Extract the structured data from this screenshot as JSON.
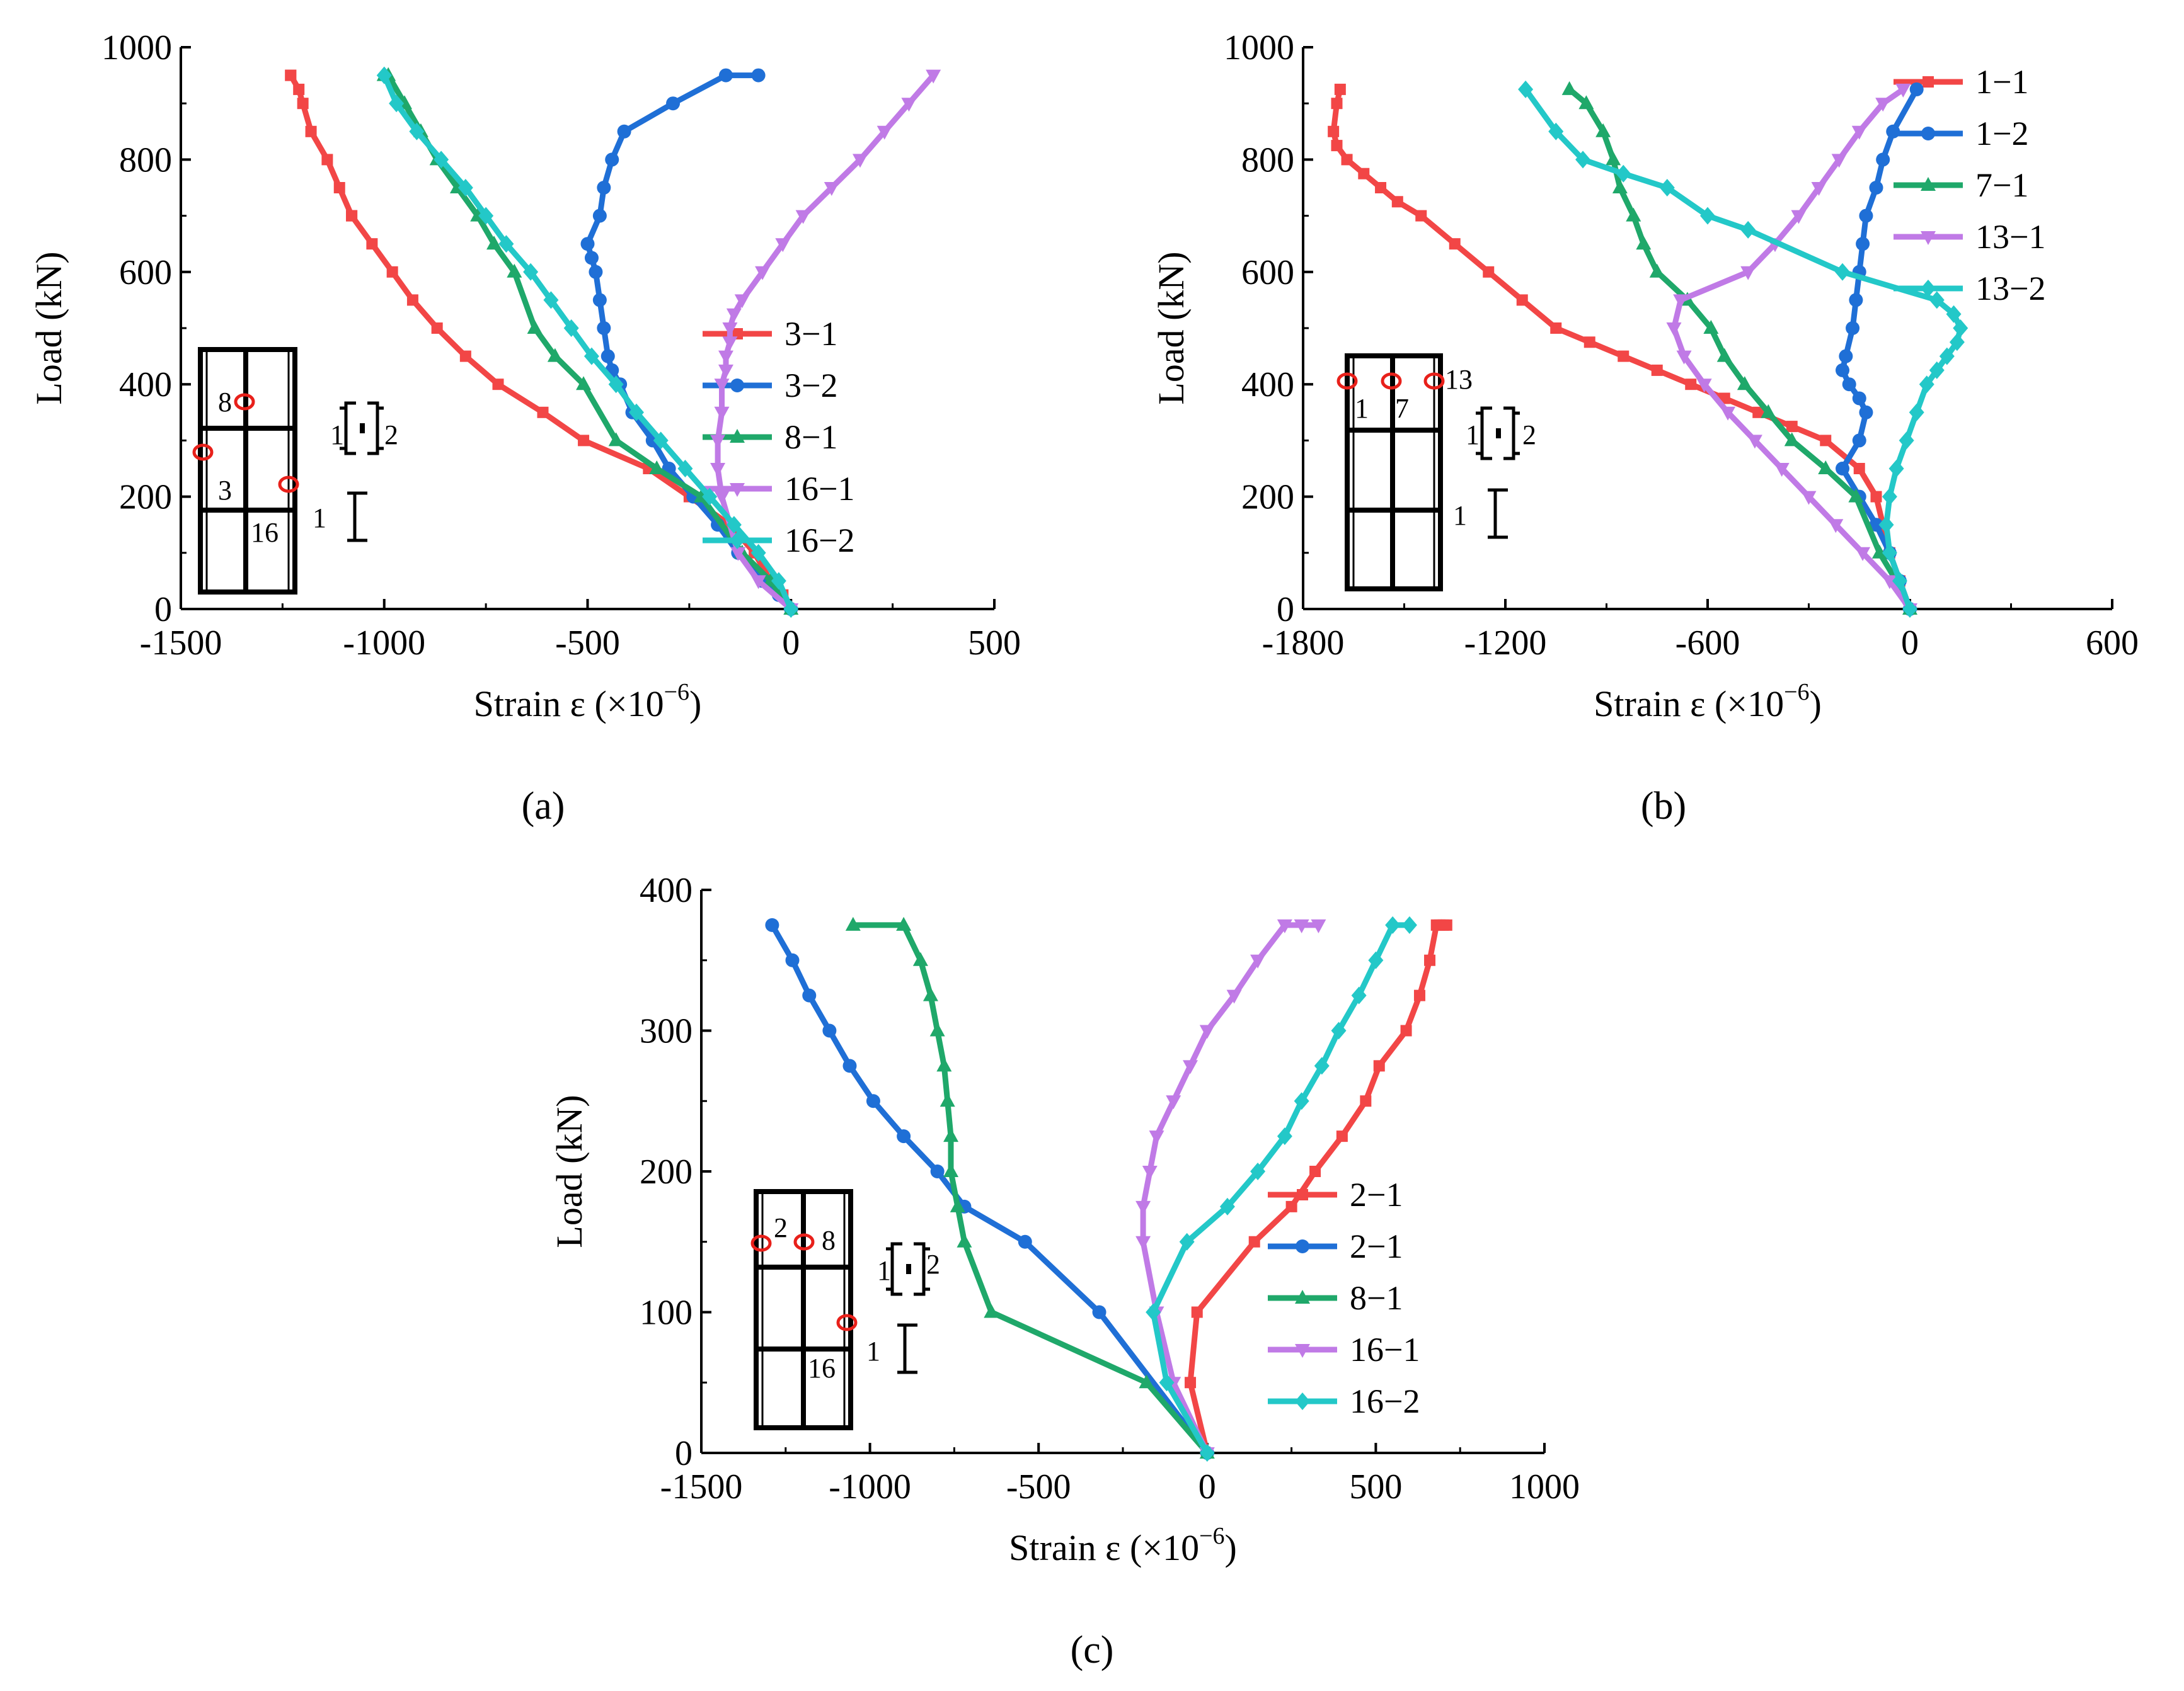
{
  "figure": {
    "panels": [
      {
        "label": "(a)",
        "xlabel": "Strain ε (×10",
        "xlabel_exp": "−6",
        "xlabel_close": ")",
        "ylabel": "Load (kN)"
      },
      {
        "label": "(b)",
        "xlabel": "Strain ε (×10",
        "xlabel_exp": "−6",
        "xlabel_close": ")",
        "ylabel": "Load (kN)"
      },
      {
        "label": "(c)",
        "xlabel": "Strain ε (×10",
        "xlabel_exp": "−6",
        "xlabel_close": ")",
        "ylabel": "Load (kN)"
      }
    ],
    "insets": [
      {
        "labels": [
          "8",
          "3",
          "16",
          "1",
          "2",
          "1"
        ]
      },
      {
        "labels": [
          "13",
          "1",
          "7",
          "1",
          "2",
          "1"
        ]
      },
      {
        "labels": [
          "2",
          "8",
          "16",
          "1",
          "2",
          "1"
        ]
      }
    ]
  },
  "colors": {
    "red": "#f24646",
    "blue": "#1f6fd6",
    "green": "#1fa86a",
    "purple": "#c07ae6",
    "cyan": "#23c8c8",
    "marker_circle": "#e8201a"
  },
  "chart_data": [
    {
      "type": "line",
      "title": "(a)",
      "xlabel": "Strain ε (×10−6)",
      "ylabel": "Load (kN)",
      "xlim": [
        -1500,
        500
      ],
      "ylim": [
        0,
        1000
      ],
      "xticks": [
        -1500,
        -1000,
        -500,
        0,
        500
      ],
      "yticks": [
        0,
        200,
        400,
        600,
        800,
        1000
      ],
      "legend": "center-right",
      "series": [
        {
          "name": "3−1",
          "color": "red",
          "marker": "square",
          "x": [
            0,
            -20,
            -50,
            -90,
            -150,
            -250,
            -350,
            -510,
            -610,
            -720,
            -800,
            -870,
            -930,
            -980,
            -1030,
            -1080,
            -1080,
            -1110,
            -1140,
            -1180,
            -1200,
            -1210,
            -1230,
            -1230
          ],
          "y": [
            0,
            25,
            50,
            100,
            150,
            200,
            250,
            300,
            350,
            400,
            450,
            500,
            550,
            600,
            650,
            700,
            700,
            750,
            800,
            850,
            900,
            925,
            950,
            950
          ]
        },
        {
          "name": "3−2",
          "color": "blue",
          "marker": "circle",
          "x": [
            0,
            -30,
            -70,
            -130,
            -180,
            -240,
            -300,
            -340,
            -390,
            -420,
            -440,
            -450,
            -460,
            -470,
            -480,
            -490,
            -500,
            -470,
            -460,
            -440,
            -410,
            -290,
            -160,
            -80
          ],
          "y": [
            0,
            25,
            50,
            100,
            150,
            200,
            250,
            300,
            350,
            400,
            425,
            450,
            500,
            550,
            600,
            625,
            650,
            700,
            750,
            800,
            850,
            900,
            950,
            950
          ]
        },
        {
          "name": "8−1",
          "color": "green",
          "marker": "triangle-up",
          "x": [
            0,
            -50,
            -120,
            -220,
            -330,
            -430,
            -510,
            -580,
            -630,
            -680,
            -730,
            -770,
            -820,
            -870,
            -910,
            -950,
            -990,
            -1000
          ],
          "y": [
            0,
            50,
            100,
            200,
            250,
            300,
            400,
            450,
            500,
            600,
            650,
            700,
            750,
            800,
            850,
            900,
            950,
            950
          ]
        },
        {
          "name": "16−1",
          "color": "purple",
          "marker": "triangle-down",
          "x": [
            0,
            -80,
            -130,
            -170,
            -180,
            -180,
            -170,
            -170,
            -160,
            -160,
            -150,
            -150,
            -140,
            -120,
            -70,
            -20,
            30,
            100,
            170,
            230,
            290,
            350
          ],
          "y": [
            0,
            50,
            100,
            200,
            250,
            300,
            350,
            400,
            425,
            450,
            475,
            500,
            525,
            550,
            600,
            650,
            700,
            750,
            800,
            850,
            900,
            950
          ]
        },
        {
          "name": "16−2",
          "color": "cyan",
          "marker": "diamond",
          "x": [
            0,
            -30,
            -80,
            -140,
            -200,
            -260,
            -320,
            -380,
            -430,
            -490,
            -540,
            -590,
            -640,
            -700,
            -750,
            -800,
            -860,
            -920,
            -970,
            -1000
          ],
          "y": [
            0,
            50,
            100,
            150,
            200,
            250,
            300,
            350,
            400,
            450,
            500,
            550,
            600,
            650,
            700,
            750,
            800,
            850,
            900,
            950
          ]
        }
      ]
    },
    {
      "type": "line",
      "title": "(b)",
      "xlabel": "Strain ε (×10−6)",
      "ylabel": "Load (kN)",
      "xlim": [
        -1800,
        600
      ],
      "ylim": [
        0,
        1000
      ],
      "xticks": [
        -1800,
        -1200,
        -600,
        0,
        600
      ],
      "yticks": [
        0,
        200,
        400,
        600,
        800,
        1000
      ],
      "legend": "top-right",
      "series": [
        {
          "name": "1−1",
          "color": "red",
          "marker": "square",
          "x": [
            0,
            -30,
            -60,
            -80,
            -100,
            -150,
            -250,
            -350,
            -450,
            -550,
            -650,
            -750,
            -850,
            -950,
            -1050,
            -1150,
            -1250,
            -1350,
            -1450,
            -1520,
            -1570,
            -1620,
            -1670,
            -1700,
            -1710,
            -1700,
            -1690
          ],
          "y": [
            0,
            50,
            100,
            150,
            200,
            250,
            300,
            325,
            350,
            375,
            400,
            425,
            450,
            475,
            500,
            550,
            600,
            650,
            700,
            725,
            750,
            775,
            800,
            825,
            850,
            900,
            925
          ]
        },
        {
          "name": "1−2",
          "color": "blue",
          "marker": "circle",
          "x": [
            0,
            -30,
            -60,
            -100,
            -150,
            -200,
            -150,
            -130,
            -150,
            -180,
            -200,
            -190,
            -170,
            -160,
            -150,
            -140,
            -130,
            -100,
            -80,
            -50,
            20
          ],
          "y": [
            0,
            50,
            100,
            150,
            200,
            250,
            300,
            350,
            375,
            400,
            425,
            450,
            500,
            550,
            600,
            650,
            700,
            750,
            800,
            850,
            925
          ]
        },
        {
          "name": "7−1",
          "color": "green",
          "marker": "triangle-up",
          "x": [
            0,
            -40,
            -90,
            -160,
            -250,
            -350,
            -420,
            -490,
            -550,
            -590,
            -660,
            -750,
            -790,
            -820,
            -860,
            -880,
            -910,
            -960,
            -1010
          ],
          "y": [
            0,
            50,
            100,
            200,
            250,
            300,
            350,
            400,
            450,
            500,
            550,
            600,
            650,
            700,
            750,
            800,
            850,
            900,
            925
          ]
        },
        {
          "name": "13−1",
          "color": "purple",
          "marker": "triangle-down",
          "x": [
            0,
            -60,
            -140,
            -220,
            -300,
            -380,
            -460,
            -540,
            -610,
            -670,
            -700,
            -680,
            -480,
            -400,
            -330,
            -270,
            -210,
            -150,
            -80,
            -20
          ],
          "y": [
            0,
            50,
            100,
            150,
            200,
            250,
            300,
            350,
            400,
            450,
            500,
            550,
            600,
            650,
            700,
            750,
            800,
            850,
            900,
            925
          ]
        },
        {
          "name": "13−2",
          "color": "cyan",
          "marker": "diamond",
          "x": [
            0,
            -30,
            -60,
            -70,
            -60,
            -40,
            -10,
            20,
            50,
            80,
            110,
            140,
            150,
            130,
            80,
            -200,
            -480,
            -600,
            -720,
            -850,
            -970,
            -1050,
            -1140
          ],
          "y": [
            0,
            50,
            100,
            150,
            200,
            250,
            300,
            350,
            400,
            425,
            450,
            475,
            500,
            525,
            550,
            600,
            675,
            700,
            750,
            775,
            800,
            850,
            925
          ]
        }
      ]
    },
    {
      "type": "line",
      "title": "(c)",
      "xlabel": "Strain ε (×10−6)",
      "ylabel": "Load (kN)",
      "xlim": [
        -1500,
        1000
      ],
      "ylim": [
        0,
        400
      ],
      "xticks": [
        -1500,
        -1000,
        -500,
        0,
        500,
        1000
      ],
      "yticks": [
        0,
        100,
        200,
        300,
        400
      ],
      "legend": "center-right",
      "series": [
        {
          "name": "2−1",
          "color": "red",
          "marker": "square",
          "x": [
            0,
            -50,
            -30,
            140,
            250,
            320,
            400,
            470,
            510,
            590,
            630,
            660,
            680,
            700,
            690,
            710
          ],
          "y": [
            0,
            50,
            100,
            150,
            175,
            200,
            225,
            250,
            275,
            300,
            325,
            350,
            375,
            375,
            375,
            375
          ]
        },
        {
          "name": "2−1",
          "color": "blue",
          "marker": "circle",
          "x": [
            0,
            -320,
            -540,
            -720,
            -800,
            -900,
            -990,
            -1060,
            -1120,
            -1180,
            -1230,
            -1290
          ],
          "y": [
            0,
            100,
            150,
            175,
            200,
            225,
            250,
            275,
            300,
            325,
            350,
            375
          ]
        },
        {
          "name": "8−1",
          "color": "green",
          "marker": "triangle-up",
          "x": [
            0,
            -180,
            -640,
            -720,
            -740,
            -760,
            -760,
            -770,
            -780,
            -800,
            -820,
            -850,
            -900,
            -1050
          ],
          "y": [
            0,
            50,
            100,
            150,
            175,
            200,
            225,
            250,
            275,
            300,
            325,
            350,
            375,
            375
          ]
        },
        {
          "name": "16−1",
          "color": "purple",
          "marker": "triangle-down",
          "x": [
            0,
            -100,
            -150,
            -190,
            -190,
            -170,
            -150,
            -100,
            -50,
            0,
            80,
            150,
            230,
            280,
            330
          ],
          "y": [
            0,
            50,
            100,
            150,
            175,
            200,
            225,
            250,
            275,
            300,
            325,
            350,
            375,
            375,
            375
          ]
        },
        {
          "name": "16−2",
          "color": "cyan",
          "marker": "diamond",
          "x": [
            0,
            -120,
            -160,
            -60,
            60,
            150,
            230,
            280,
            340,
            390,
            450,
            500,
            550,
            600
          ],
          "y": [
            0,
            50,
            100,
            150,
            175,
            200,
            225,
            250,
            275,
            300,
            325,
            350,
            375,
            375
          ]
        }
      ]
    }
  ]
}
